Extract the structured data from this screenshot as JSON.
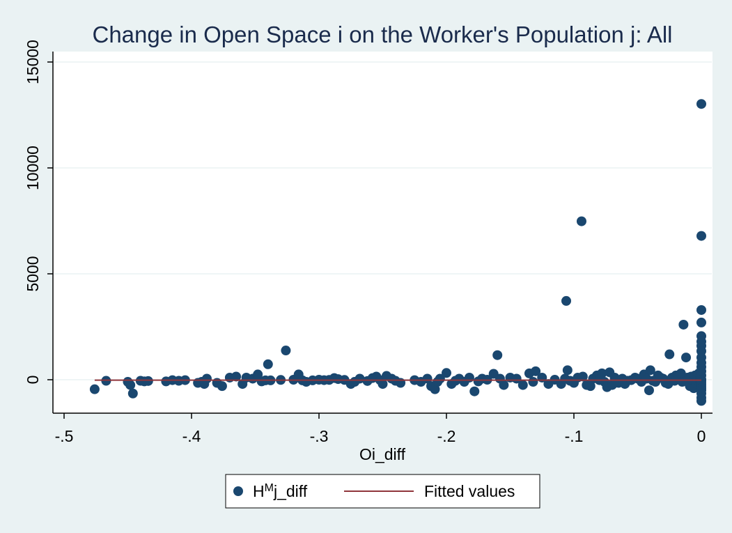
{
  "chart_data": {
    "type": "scatter",
    "title": "Change in Open Space i on the Worker's Population j: All",
    "xlabel": "Oi_diff",
    "ylabel": "",
    "xlim": [
      -0.5,
      0
    ],
    "ylim": [
      -1000,
      16000
    ],
    "xticks": [
      -0.5,
      -0.4,
      -0.3,
      -0.2,
      -0.1,
      0
    ],
    "xtick_labels": [
      "-.5",
      "-.4",
      "-.3",
      "-.2",
      "-.1",
      "0"
    ],
    "yticks": [
      0,
      5000,
      10000,
      15000
    ],
    "ytick_labels": [
      "0",
      "5000",
      "10000",
      "15000"
    ],
    "grid": true,
    "legend_position": "bottom",
    "colors": {
      "points": "#1a476f",
      "fit": "#90353b",
      "background": "#eaf2f3",
      "plot": "#ffffff",
      "grid": "#eaf2f3"
    },
    "series": [
      {
        "name_main": "H",
        "name_sup": "M",
        "name_rest": "j_diff",
        "type": "scatter",
        "x": [
          -0.476,
          -0.467,
          -0.45,
          -0.448,
          -0.446,
          -0.44,
          -0.437,
          -0.434,
          -0.42,
          -0.415,
          -0.41,
          -0.405,
          -0.395,
          -0.392,
          -0.39,
          -0.388,
          -0.38,
          -0.376,
          -0.37,
          -0.365,
          -0.36,
          -0.357,
          -0.352,
          -0.348,
          -0.345,
          -0.342,
          -0.34,
          -0.338,
          -0.33,
          -0.326,
          -0.32,
          -0.316,
          -0.313,
          -0.31,
          -0.305,
          -0.3,
          -0.296,
          -0.292,
          -0.288,
          -0.285,
          -0.28,
          -0.275,
          -0.272,
          -0.268,
          -0.262,
          -0.258,
          -0.255,
          -0.252,
          -0.25,
          -0.247,
          -0.243,
          -0.24,
          -0.236,
          -0.225,
          -0.22,
          -0.215,
          -0.212,
          -0.209,
          -0.207,
          -0.205,
          -0.2,
          -0.196,
          -0.193,
          -0.19,
          -0.186,
          -0.182,
          -0.178,
          -0.175,
          -0.172,
          -0.168,
          -0.163,
          -0.16,
          -0.158,
          -0.155,
          -0.15,
          -0.145,
          -0.14,
          -0.135,
          -0.132,
          -0.13,
          -0.125,
          -0.12,
          -0.115,
          -0.11,
          -0.107,
          -0.106,
          -0.105,
          -0.103,
          -0.1,
          -0.097,
          -0.094,
          -0.093,
          -0.09,
          -0.087,
          -0.085,
          -0.082,
          -0.08,
          -0.078,
          -0.076,
          -0.074,
          -0.072,
          -0.07,
          -0.068,
          -0.065,
          -0.062,
          -0.06,
          -0.058,
          -0.055,
          -0.052,
          -0.05,
          -0.047,
          -0.045,
          -0.043,
          -0.041,
          -0.04,
          -0.038,
          -0.036,
          -0.034,
          -0.032,
          -0.03,
          -0.028,
          -0.026,
          -0.025,
          -0.023,
          -0.021,
          -0.02,
          -0.018,
          -0.016,
          -0.015,
          -0.014,
          -0.012,
          -0.011,
          -0.01,
          -0.009,
          -0.008,
          -0.007,
          -0.006,
          -0.005,
          -0.004,
          -0.003,
          -0.002,
          -0.002,
          -0.001,
          -0.001,
          0,
          0,
          0,
          0,
          0,
          0,
          0,
          0,
          0,
          0,
          0,
          0,
          0,
          0,
          0,
          0,
          0,
          0,
          0,
          0,
          0,
          0,
          0
        ],
        "y": [
          -450,
          -50,
          -100,
          -250,
          -650,
          -50,
          -80,
          -60,
          -80,
          -20,
          -50,
          -20,
          -150,
          -100,
          -200,
          50,
          -150,
          -300,
          100,
          150,
          -200,
          100,
          50,
          250,
          -80,
          -30,
          730,
          -30,
          -10,
          1380,
          0,
          250,
          -30,
          -100,
          -30,
          0,
          -20,
          -10,
          80,
          30,
          -10,
          -200,
          -100,
          50,
          -60,
          80,
          150,
          -20,
          -200,
          180,
          50,
          -50,
          -150,
          -20,
          -100,
          50,
          -300,
          -450,
          -100,
          50,
          320,
          -200,
          -50,
          50,
          -100,
          100,
          -550,
          -80,
          50,
          0,
          280,
          1160,
          50,
          -250,
          100,
          50,
          -250,
          300,
          -100,
          400,
          100,
          -200,
          0,
          -200,
          50,
          3720,
          450,
          -50,
          -150,
          100,
          7480,
          150,
          -250,
          -300,
          50,
          200,
          -20,
          300,
          -100,
          -350,
          350,
          -250,
          100,
          -150,
          50,
          -200,
          -50,
          -20,
          100,
          50,
          -100,
          250,
          50,
          -500,
          450,
          -50,
          -100,
          200,
          100,
          50,
          -150,
          -200,
          1200,
          100,
          -50,
          200,
          100,
          300,
          -100,
          2600,
          1050,
          100,
          50,
          -300,
          150,
          -50,
          -400,
          200,
          -200,
          100,
          -100,
          300,
          -50,
          100,
          0,
          13020,
          6790,
          3290,
          2700,
          2060,
          1800,
          1600,
          1350,
          1050,
          800,
          600,
          400,
          200,
          0,
          -100,
          -200,
          -300,
          -400,
          -500,
          -650,
          -850,
          -1000
        ]
      },
      {
        "name": "Fitted values",
        "type": "line",
        "x": [
          -0.476,
          0
        ],
        "y": [
          -20,
          -20
        ]
      }
    ]
  }
}
